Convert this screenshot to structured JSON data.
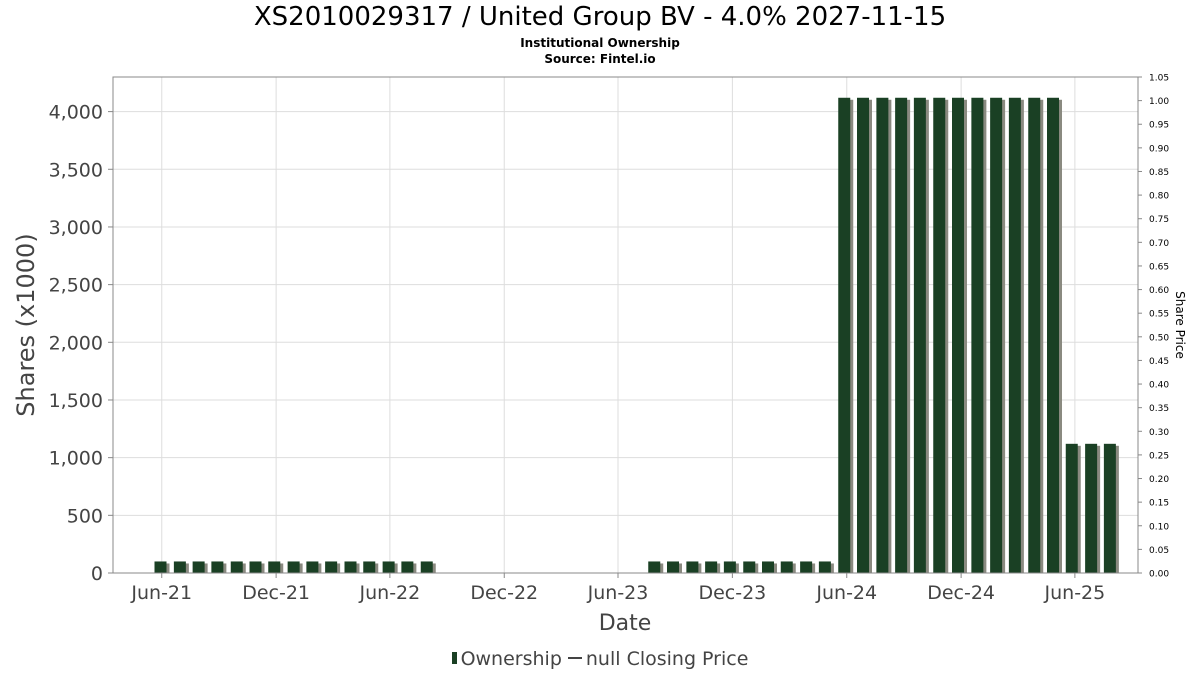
{
  "header": {
    "title": "XS2010029317 / United Group BV - 4.0% 2027-11-15",
    "subtitle1": "Institutional Ownership",
    "subtitle2": "Source: Fintel.io"
  },
  "legend": {
    "ownership_label": "Ownership",
    "price_label": "null Closing Price"
  },
  "chart_data": {
    "type": "bar",
    "xlabel": "Date",
    "ylabel": "Shares (x1000)",
    "ylabel_right": "Share Price",
    "xlim": [
      "2021-03-15",
      "2025-09-10"
    ],
    "ylim": [
      0,
      4300
    ],
    "ylim_right": [
      0,
      1.05
    ],
    "y_ticks": [
      0,
      500,
      1000,
      1500,
      2000,
      2500,
      3000,
      3500,
      4000
    ],
    "y_tick_labels": [
      "0",
      "500",
      "1,000",
      "1,500",
      "2,000",
      "2,500",
      "3,000",
      "3,500",
      "4,000"
    ],
    "y_right_ticks": [
      0.0,
      0.05,
      0.1,
      0.15,
      0.2,
      0.25,
      0.3,
      0.35,
      0.4,
      0.45,
      0.5,
      0.55,
      0.6,
      0.65,
      0.7,
      0.75,
      0.8,
      0.85,
      0.9,
      0.95,
      1.0,
      1.05
    ],
    "y_right_tick_labels": [
      "0.00",
      "0.05",
      "0.10",
      "0.15",
      "0.20",
      "0.25",
      "0.30",
      "0.35",
      "0.40",
      "0.45",
      "0.50",
      "0.55",
      "0.60",
      "0.65",
      "0.70",
      "0.75",
      "0.80",
      "0.85",
      "0.90",
      "0.95",
      "1.00",
      "1.05"
    ],
    "x_ticks": [
      "2021-06-01",
      "2021-12-01",
      "2022-06-01",
      "2022-12-01",
      "2023-06-01",
      "2023-12-01",
      "2024-06-01",
      "2024-12-01",
      "2025-06-01"
    ],
    "x_tick_labels": [
      "Jun-21",
      "Dec-21",
      "Jun-22",
      "Dec-22",
      "Jun-23",
      "Dec-23",
      "Jun-24",
      "Dec-24",
      "Jun-25"
    ],
    "grid": true,
    "bar_color": "#1a4024",
    "bar_shadow_color": "#8a8a80",
    "series": [
      {
        "name": "Ownership",
        "points": [
          {
            "date": "2021-05-30",
            "value": 100
          },
          {
            "date": "2021-06-30",
            "value": 100
          },
          {
            "date": "2021-07-30",
            "value": 100
          },
          {
            "date": "2021-08-29",
            "value": 100
          },
          {
            "date": "2021-09-29",
            "value": 100
          },
          {
            "date": "2021-10-29",
            "value": 100
          },
          {
            "date": "2021-11-28",
            "value": 100
          },
          {
            "date": "2021-12-29",
            "value": 100
          },
          {
            "date": "2022-01-28",
            "value": 100
          },
          {
            "date": "2022-02-27",
            "value": 100
          },
          {
            "date": "2022-03-30",
            "value": 100
          },
          {
            "date": "2022-04-29",
            "value": 100
          },
          {
            "date": "2022-05-30",
            "value": 100
          },
          {
            "date": "2022-06-29",
            "value": 100
          },
          {
            "date": "2022-07-30",
            "value": 100
          },
          {
            "date": "2023-07-29",
            "value": 100
          },
          {
            "date": "2023-08-28",
            "value": 100
          },
          {
            "date": "2023-09-28",
            "value": 100
          },
          {
            "date": "2023-10-28",
            "value": 100
          },
          {
            "date": "2023-11-27",
            "value": 100
          },
          {
            "date": "2023-12-28",
            "value": 100
          },
          {
            "date": "2024-01-27",
            "value": 100
          },
          {
            "date": "2024-02-26",
            "value": 100
          },
          {
            "date": "2024-03-28",
            "value": 100
          },
          {
            "date": "2024-04-27",
            "value": 100
          },
          {
            "date": "2024-05-28",
            "value": 4120
          },
          {
            "date": "2024-06-27",
            "value": 4120
          },
          {
            "date": "2024-07-28",
            "value": 4120
          },
          {
            "date": "2024-08-27",
            "value": 4120
          },
          {
            "date": "2024-09-26",
            "value": 4120
          },
          {
            "date": "2024-10-27",
            "value": 4120
          },
          {
            "date": "2024-11-26",
            "value": 4120
          },
          {
            "date": "2024-12-27",
            "value": 4120
          },
          {
            "date": "2025-01-26",
            "value": 4120
          },
          {
            "date": "2025-02-25",
            "value": 4120
          },
          {
            "date": "2025-03-28",
            "value": 4120
          },
          {
            "date": "2025-04-27",
            "value": 4120
          },
          {
            "date": "2025-05-27",
            "value": 1120
          },
          {
            "date": "2025-06-27",
            "value": 1120
          },
          {
            "date": "2025-07-27",
            "value": 1120
          }
        ]
      }
    ]
  }
}
